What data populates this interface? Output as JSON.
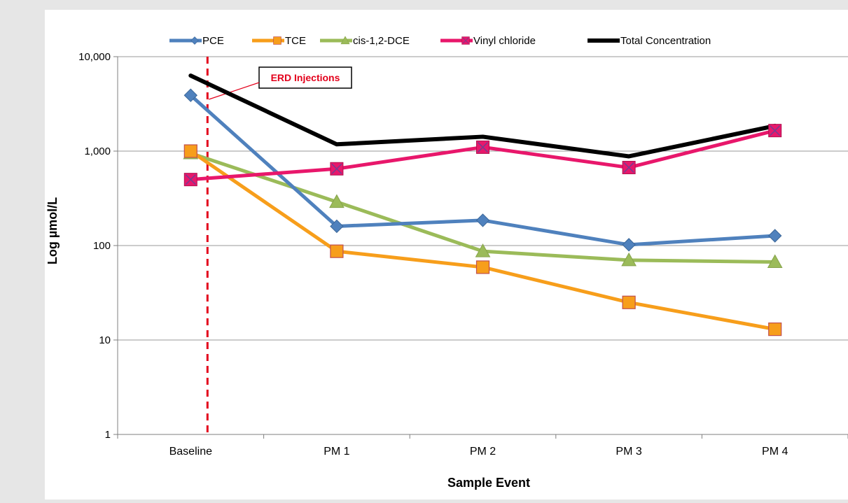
{
  "chart_data": {
    "type": "line",
    "title": "",
    "xlabel": "Sample Event",
    "ylabel": "Log µmol/L",
    "categories": [
      "Baseline",
      "PM 1",
      "PM 2",
      "PM 3",
      "PM 4"
    ],
    "y_scale": "log",
    "ylim": [
      1,
      10000
    ],
    "y_ticks": [
      {
        "value": 1,
        "label": "1"
      },
      {
        "value": 10,
        "label": "10"
      },
      {
        "value": 100,
        "label": "100"
      },
      {
        "value": 1000,
        "label": "1,000"
      },
      {
        "value": 10000,
        "label": "10,000"
      }
    ],
    "grid": "horizontal major gridlines",
    "legend_position": "top",
    "series": [
      {
        "name": "PCE",
        "values": [
          3900,
          160,
          185,
          102,
          127
        ],
        "color": "#4f81bd",
        "marker": "diamond"
      },
      {
        "name": "TCE",
        "values": [
          1000,
          87,
          59,
          25,
          13
        ],
        "color": "#f79e1b",
        "marker": "square"
      },
      {
        "name": "cis-1,2-DCE",
        "values": [
          950,
          290,
          87,
          70,
          67
        ],
        "color": "#9bbb59",
        "marker": "triangle"
      },
      {
        "name": "Vinyl chloride",
        "values": [
          500,
          650,
          1100,
          670,
          1650
        ],
        "color": "#e8176b",
        "marker": "x-square"
      },
      {
        "name": "Total Concentration",
        "values": [
          6300,
          1180,
          1420,
          880,
          1850
        ],
        "color": "#000000",
        "marker": "none"
      }
    ],
    "annotations": [
      {
        "text": "ERD Injections",
        "color": "#e3001b",
        "marker_line": "vertical dashed red line just after Baseline"
      }
    ]
  }
}
